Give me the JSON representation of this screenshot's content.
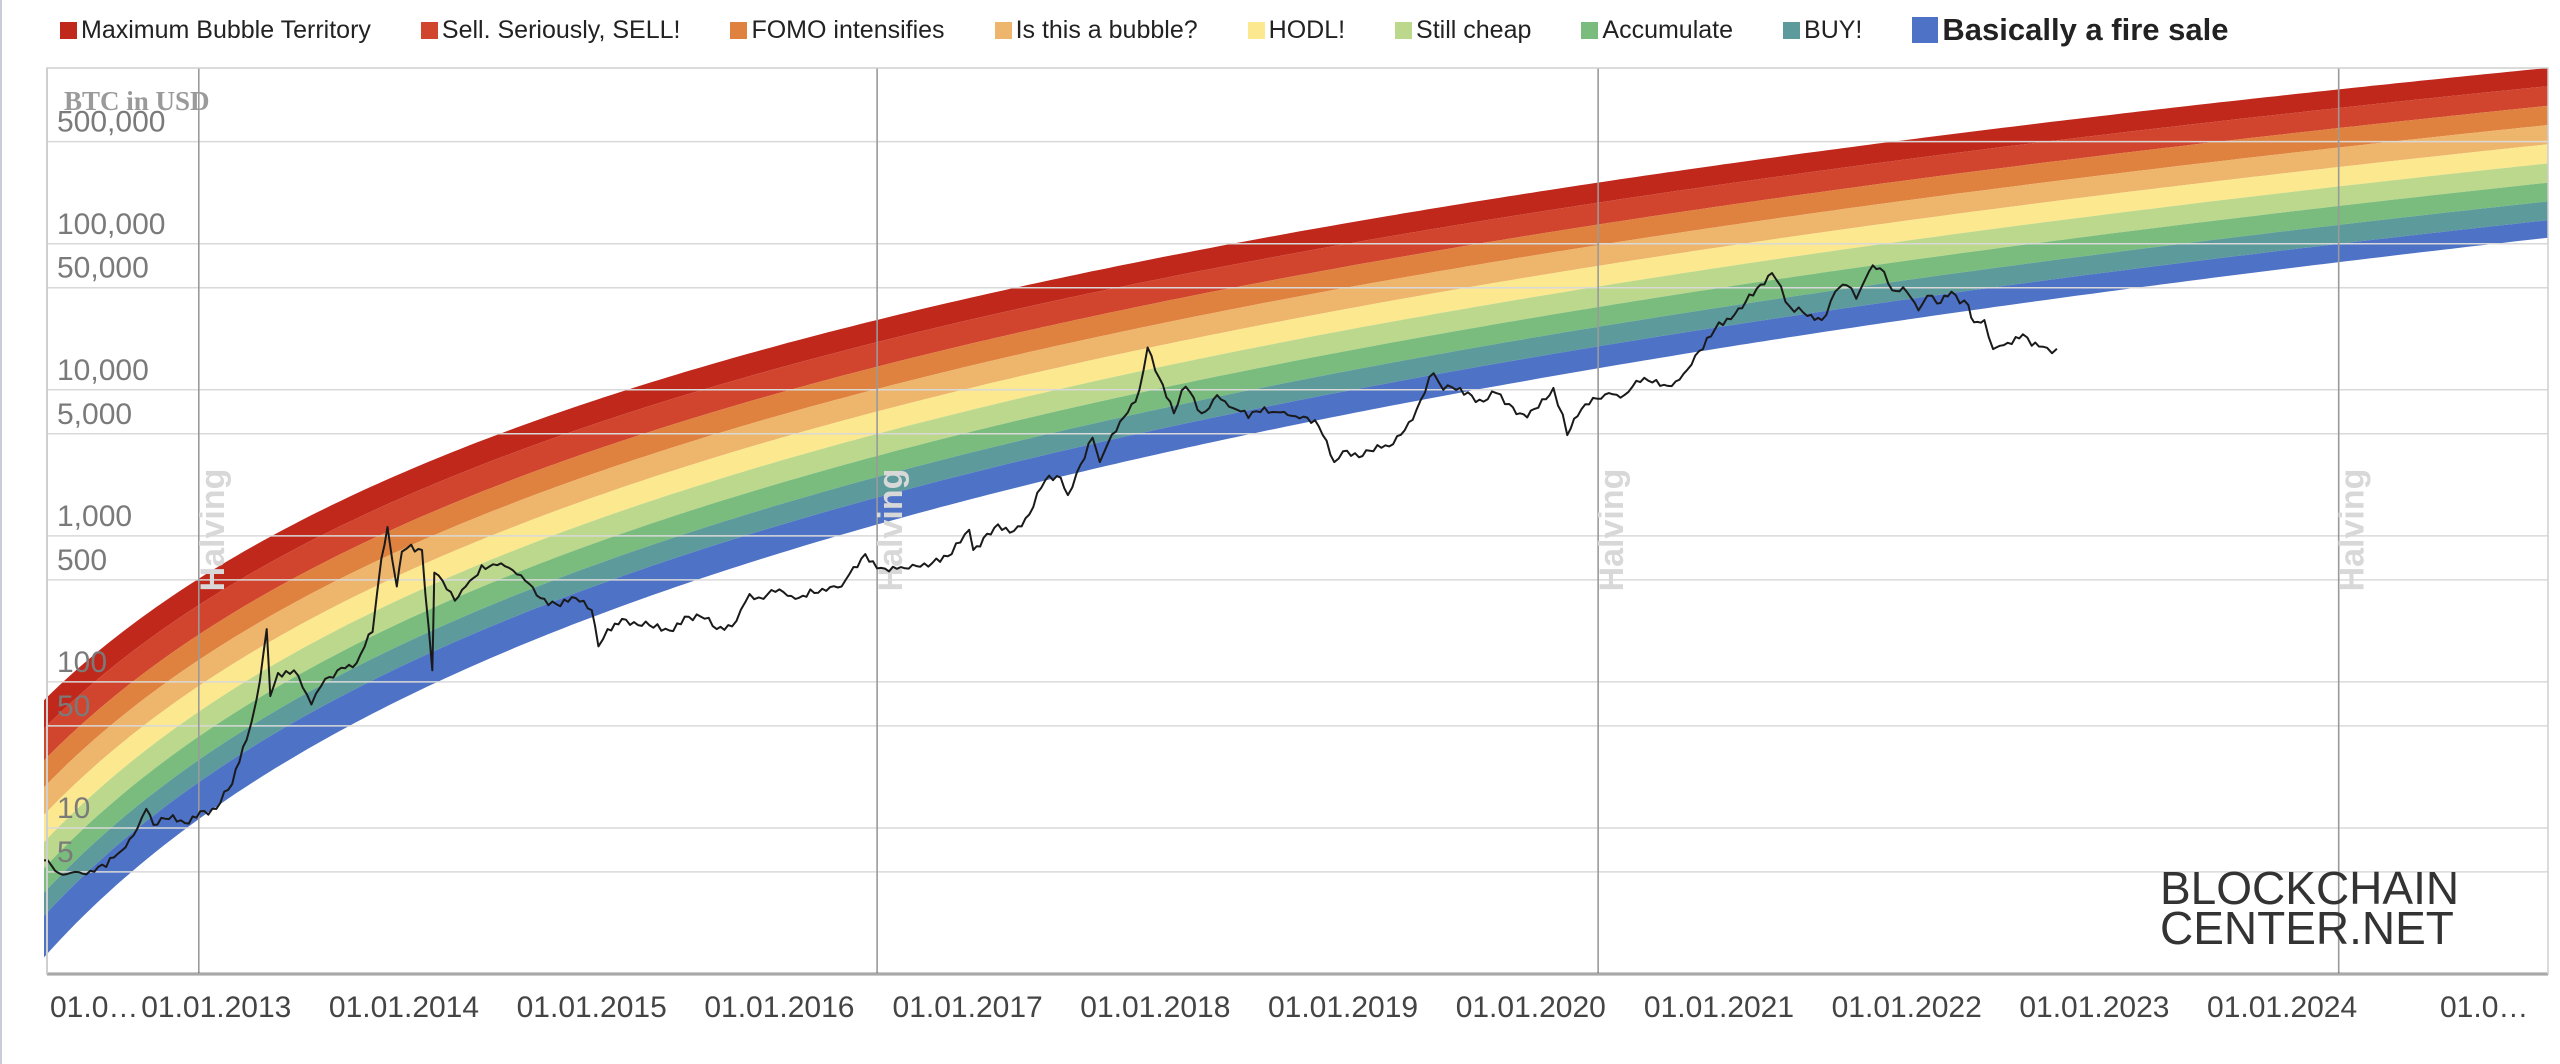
{
  "legend": [
    {
      "label": "Maximum Bubble Territory",
      "color": "#c0281c"
    },
    {
      "label": "Sell. Seriously, SELL!",
      "color": "#d1452e"
    },
    {
      "label": "FOMO intensifies",
      "color": "#e0823f"
    },
    {
      "label": "Is this a bubble?",
      "color": "#eeb56d"
    },
    {
      "label": "HODL!",
      "color": "#fbe88f"
    },
    {
      "label": "Still cheap",
      "color": "#bcd88c"
    },
    {
      "label": "Accumulate",
      "color": "#79bc7e"
    },
    {
      "label": "BUY!",
      "color": "#5c9a9c"
    },
    {
      "label": "Basically a fire sale",
      "color": "#4e72c6"
    }
  ],
  "watermark": {
    "line1": "BLOCKCHAIN",
    "line2": "CENTER.NET"
  },
  "chart_data": {
    "type": "area",
    "ylabel": "BTC in USD",
    "yscale": "log",
    "ylim": [
      1,
      1500000
    ],
    "yticks": [
      {
        "value": 500000,
        "label": "500,000"
      },
      {
        "value": 100000,
        "label": "100,000"
      },
      {
        "value": 50000,
        "label": "50,000"
      },
      {
        "value": 10000,
        "label": "10,000"
      },
      {
        "value": 5000,
        "label": "5,000"
      },
      {
        "value": 1000,
        "label": "1,000"
      },
      {
        "value": 500,
        "label": "500"
      },
      {
        "value": 100,
        "label": "100"
      },
      {
        "value": 50,
        "label": "50"
      },
      {
        "value": 10,
        "label": "10"
      },
      {
        "value": 5,
        "label": "5"
      }
    ],
    "xlim": [
      "2012-02-01",
      "2025-06-01"
    ],
    "xticks": [
      {
        "date": "2012-01-01",
        "label": "01.0…"
      },
      {
        "date": "2013-01-01",
        "label": "01.01.2013"
      },
      {
        "date": "2014-01-01",
        "label": "01.01.2014"
      },
      {
        "date": "2015-01-01",
        "label": "01.01.2015"
      },
      {
        "date": "2016-01-01",
        "label": "01.01.2016"
      },
      {
        "date": "2017-01-01",
        "label": "01.01.2017"
      },
      {
        "date": "2018-01-01",
        "label": "01.01.2018"
      },
      {
        "date": "2019-01-01",
        "label": "01.01.2019"
      },
      {
        "date": "2020-01-01",
        "label": "01.01.2020"
      },
      {
        "date": "2021-01-01",
        "label": "01.01.2021"
      },
      {
        "date": "2022-01-01",
        "label": "01.01.2022"
      },
      {
        "date": "2023-01-01",
        "label": "01.01.2023"
      },
      {
        "date": "2024-01-01",
        "label": "01.01.2024"
      },
      {
        "date": "2025-01-01",
        "label": "01.0…"
      }
    ],
    "halvings": [
      {
        "date": "2012-11-28",
        "label": "Halving"
      },
      {
        "date": "2016-07-09",
        "label": "Halving"
      },
      {
        "date": "2020-05-11",
        "label": "Halving"
      },
      {
        "date": "2024-04-20",
        "label": "Halving"
      }
    ],
    "bands": [
      {
        "name": "Maximum Bubble Territory",
        "color": "#c0281c",
        "lower_start": 48,
        "lower_end": 1200000
      },
      {
        "name": "Sell. Seriously, SELL!",
        "color": "#d1452e",
        "lower_start": 29,
        "lower_end": 880000
      },
      {
        "name": "FOMO intensifies",
        "color": "#e0823f",
        "lower_start": 19,
        "lower_end": 650000
      },
      {
        "name": "Is this a bubble?",
        "color": "#eeb56d",
        "lower_start": 12.3,
        "lower_end": 480000
      },
      {
        "name": "HODL!",
        "color": "#fbe88f",
        "lower_start": 8,
        "lower_end": 355000
      },
      {
        "name": "Still cheap",
        "color": "#bcd88c",
        "lower_start": 5.3,
        "lower_end": 262000
      },
      {
        "name": "Accumulate",
        "color": "#79bc7e",
        "lower_start": 3.6,
        "lower_end": 195000
      },
      {
        "name": "BUY!",
        "color": "#5c9a9c",
        "lower_start": 2.5,
        "lower_end": 145000
      },
      {
        "name": "Basically a fire sale",
        "color": "#4e72c6",
        "lower_start": 1.3,
        "lower_end": 110000
      }
    ],
    "bands_top": {
      "start": 75,
      "end": 1600000
    },
    "price_series": {
      "name": "BTC price",
      "points": [
        [
          "2012-02-01",
          6.0
        ],
        [
          "2012-03-01",
          4.9
        ],
        [
          "2012-04-01",
          5.0
        ],
        [
          "2012-05-01",
          5.1
        ],
        [
          "2012-06-01",
          5.4
        ],
        [
          "2012-07-01",
          7.0
        ],
        [
          "2012-08-01",
          10.0
        ],
        [
          "2012-08-18",
          13.5
        ],
        [
          "2012-09-01",
          10.5
        ],
        [
          "2012-10-01",
          11.5
        ],
        [
          "2012-11-01",
          10.8
        ],
        [
          "2012-12-01",
          13.0
        ],
        [
          "2013-01-01",
          13.5
        ],
        [
          "2013-02-01",
          20.0
        ],
        [
          "2013-03-01",
          40.0
        ],
        [
          "2013-03-20",
          75.0
        ],
        [
          "2013-04-09",
          230.0
        ],
        [
          "2013-04-16",
          80.0
        ],
        [
          "2013-05-01",
          115.0
        ],
        [
          "2013-06-01",
          120.0
        ],
        [
          "2013-07-05",
          70.0
        ],
        [
          "2013-08-01",
          105.0
        ],
        [
          "2013-09-01",
          125.0
        ],
        [
          "2013-10-01",
          135.0
        ],
        [
          "2013-11-01",
          220.0
        ],
        [
          "2013-11-18",
          700.0
        ],
        [
          "2013-11-30",
          1150.0
        ],
        [
          "2013-12-18",
          450.0
        ],
        [
          "2013-12-28",
          780.0
        ],
        [
          "2014-01-15",
          870.0
        ],
        [
          "2014-02-05",
          800.0
        ],
        [
          "2014-02-25",
          120.0
        ],
        [
          "2014-03-01",
          560.0
        ],
        [
          "2014-04-10",
          360.0
        ],
        [
          "2014-05-01",
          450.0
        ],
        [
          "2014-06-01",
          630.0
        ],
        [
          "2014-07-01",
          630.0
        ],
        [
          "2014-08-01",
          580.0
        ],
        [
          "2014-09-01",
          470.0
        ],
        [
          "2014-10-01",
          370.0
        ],
        [
          "2014-11-01",
          330.0
        ],
        [
          "2014-12-01",
          375.0
        ],
        [
          "2015-01-01",
          310.0
        ],
        [
          "2015-01-14",
          175.0
        ],
        [
          "2015-02-01",
          230.0
        ],
        [
          "2015-03-01",
          270.0
        ],
        [
          "2015-04-01",
          245.0
        ],
        [
          "2015-05-01",
          235.0
        ],
        [
          "2015-06-01",
          225.0
        ],
        [
          "2015-07-01",
          280.0
        ],
        [
          "2015-08-01",
          280.0
        ],
        [
          "2015-09-01",
          230.0
        ],
        [
          "2015-10-01",
          240.0
        ],
        [
          "2015-11-04",
          400.0
        ],
        [
          "2015-12-01",
          370.0
        ],
        [
          "2016-01-01",
          430.0
        ],
        [
          "2016-02-01",
          370.0
        ],
        [
          "2016-03-01",
          430.0
        ],
        [
          "2016-04-01",
          420.0
        ],
        [
          "2016-05-01",
          450.0
        ],
        [
          "2016-06-16",
          750.0
        ],
        [
          "2016-07-01",
          670.0
        ],
        [
          "2016-08-01",
          570.0
        ],
        [
          "2016-09-01",
          600.0
        ],
        [
          "2016-10-01",
          615.0
        ],
        [
          "2016-11-01",
          700.0
        ],
        [
          "2016-12-01",
          750.0
        ],
        [
          "2017-01-04",
          1100.0
        ],
        [
          "2017-01-12",
          800.0
        ],
        [
          "2017-02-01",
          970.0
        ],
        [
          "2017-03-01",
          1200.0
        ],
        [
          "2017-04-01",
          1080.0
        ],
        [
          "2017-05-01",
          1400.0
        ],
        [
          "2017-06-01",
          2400.0
        ],
        [
          "2017-07-01",
          2500.0
        ],
        [
          "2017-07-15",
          1900.0
        ],
        [
          "2017-08-01",
          2700.0
        ],
        [
          "2017-09-01",
          4700.0
        ],
        [
          "2017-09-15",
          3200.0
        ],
        [
          "2017-10-01",
          4300.0
        ],
        [
          "2017-11-01",
          6500.0
        ],
        [
          "2017-12-01",
          10000.0
        ],
        [
          "2017-12-17",
          19500.0
        ],
        [
          "2018-01-01",
          13500.0
        ],
        [
          "2018-02-06",
          6900.0
        ],
        [
          "2018-03-01",
          10500.0
        ],
        [
          "2018-04-01",
          6900.0
        ],
        [
          "2018-05-01",
          9200.0
        ],
        [
          "2018-06-01",
          7500.0
        ],
        [
          "2018-07-01",
          6400.0
        ],
        [
          "2018-08-01",
          7600.0
        ],
        [
          "2018-09-01",
          7000.0
        ],
        [
          "2018-10-01",
          6600.0
        ],
        [
          "2018-11-15",
          5600.0
        ],
        [
          "2018-12-15",
          3200.0
        ],
        [
          "2019-01-01",
          3800.0
        ],
        [
          "2019-02-01",
          3450.0
        ],
        [
          "2019-03-01",
          3800.0
        ],
        [
          "2019-04-01",
          4100.0
        ],
        [
          "2019-05-01",
          5300.0
        ],
        [
          "2019-06-01",
          8500.0
        ],
        [
          "2019-06-26",
          13000.0
        ],
        [
          "2019-07-15",
          10000.0
        ],
        [
          "2019-08-01",
          10400.0
        ],
        [
          "2019-09-01",
          9600.0
        ],
        [
          "2019-10-01",
          8300.0
        ],
        [
          "2019-10-26",
          9500.0
        ],
        [
          "2019-11-20",
          8000.0
        ],
        [
          "2019-12-18",
          6800.0
        ],
        [
          "2020-01-01",
          7200.0
        ],
        [
          "2020-02-14",
          10300.0
        ],
        [
          "2020-03-12",
          4900.0
        ],
        [
          "2020-04-01",
          6600.0
        ],
        [
          "2020-05-01",
          8800.0
        ],
        [
          "2020-06-01",
          9500.0
        ],
        [
          "2020-07-01",
          9200.0
        ],
        [
          "2020-08-01",
          11300.0
        ],
        [
          "2020-09-01",
          11700.0
        ],
        [
          "2020-10-01",
          10600.0
        ],
        [
          "2020-11-01",
          13800.0
        ],
        [
          "2020-12-01",
          19000.0
        ],
        [
          "2021-01-01",
          29000.0
        ],
        [
          "2021-02-01",
          33000.0
        ],
        [
          "2021-03-01",
          45000.0
        ],
        [
          "2021-04-14",
          63000.0
        ],
        [
          "2021-05-19",
          37000.0
        ],
        [
          "2021-06-22",
          32000.0
        ],
        [
          "2021-07-20",
          30000.0
        ],
        [
          "2021-08-15",
          47000.0
        ],
        [
          "2021-09-06",
          52000.0
        ],
        [
          "2021-09-25",
          42000.0
        ],
        [
          "2021-10-20",
          65000.0
        ],
        [
          "2021-11-10",
          68000.0
        ],
        [
          "2021-12-04",
          48000.0
        ],
        [
          "2022-01-01",
          47000.0
        ],
        [
          "2022-01-24",
          35000.0
        ],
        [
          "2022-02-10",
          44000.0
        ],
        [
          "2022-03-01",
          39000.0
        ],
        [
          "2022-03-29",
          47000.0
        ],
        [
          "2022-05-01",
          38000.0
        ],
        [
          "2022-05-12",
          29000.0
        ],
        [
          "2022-06-01",
          30000.0
        ],
        [
          "2022-06-18",
          19000.0
        ],
        [
          "2022-07-01",
          20000.0
        ],
        [
          "2022-08-01",
          23000.0
        ],
        [
          "2022-08-15",
          24000.0
        ],
        [
          "2022-09-01",
          20000.0
        ],
        [
          "2022-09-15",
          19800.0
        ],
        [
          "2022-10-01",
          19400.0
        ],
        [
          "2022-10-20",
          19100.0
        ]
      ]
    }
  }
}
